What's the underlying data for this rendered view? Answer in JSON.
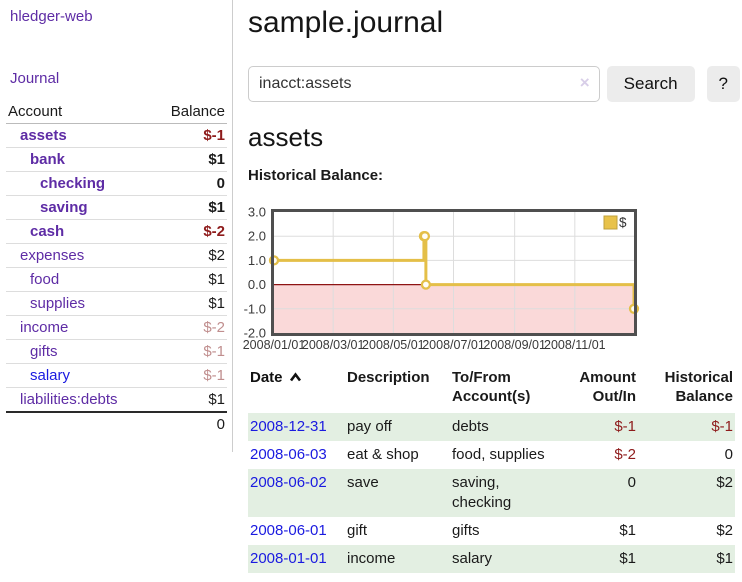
{
  "sidebar": {
    "brand": "hledger-web",
    "journal_link": "Journal",
    "accounts": {
      "col_account": "Account",
      "col_balance": "Balance",
      "rows": [
        {
          "name": "assets",
          "balance": "$-1"
        },
        {
          "name": "bank",
          "balance": "$1"
        },
        {
          "name": "checking",
          "balance": "0"
        },
        {
          "name": "saving",
          "balance": "$1"
        },
        {
          "name": "cash",
          "balance": "$-2"
        },
        {
          "name": "expenses",
          "balance": "$2"
        },
        {
          "name": "food",
          "balance": "$1"
        },
        {
          "name": "supplies",
          "balance": "$1"
        },
        {
          "name": "income",
          "balance": "$-2"
        },
        {
          "name": "gifts",
          "balance": "$-1"
        },
        {
          "name": "salary",
          "balance": "$-1"
        },
        {
          "name": "liabilities:debts",
          "balance": "$1"
        }
      ],
      "total": "0"
    }
  },
  "main": {
    "title": "sample.journal",
    "search": {
      "query": "inacct:assets",
      "clear": "×",
      "search_button": "Search",
      "help_button": "?"
    },
    "heading": "assets",
    "chart_title": "Historical Balance:"
  },
  "chart_data": {
    "type": "line",
    "style": "step-after",
    "title": "Historical Balance:",
    "legend": [
      {
        "label": "$",
        "color": "#e8c24a"
      }
    ],
    "legend_position": "top-right",
    "grid": true,
    "xlim_dates": [
      "2008-01-01",
      "2008-12-31"
    ],
    "ylim": [
      -2,
      3
    ],
    "y_ticks": [
      3.0,
      2.0,
      1.0,
      0.0,
      -1.0,
      -2.0
    ],
    "x_ticks": [
      "2008/01/01",
      "2008/03/01",
      "2008/05/01",
      "2008/07/01",
      "2008/09/01",
      "2008/11/01"
    ],
    "series": [
      {
        "name": "$",
        "color": "#e4bf48",
        "points": [
          {
            "date": "2008-01-01",
            "value": 1
          },
          {
            "date": "2008-06-01",
            "value": 2
          },
          {
            "date": "2008-06-02",
            "value": 2
          },
          {
            "date": "2008-06-03",
            "value": 0
          },
          {
            "date": "2008-12-31",
            "value": -1
          }
        ]
      }
    ],
    "negative_region_color": "#fad9d9",
    "zero_line_color": "#8e1414",
    "border_color": "#4f4f4f",
    "gridline_color": "#dddddd"
  },
  "register": {
    "headers": {
      "date": "Date",
      "description": "Description",
      "account": "To/From Account(s)",
      "amount": "Amount Out/In",
      "balance": "Historical Balance",
      "sort_icon": "chevron-up"
    },
    "rows": [
      {
        "date": "2008-12-31",
        "description": "pay off",
        "accounts": "debts",
        "amount": "$-1",
        "balance": "$-1"
      },
      {
        "date": "2008-06-03",
        "description": "eat & shop",
        "accounts": "food, supplies",
        "amount": "$-2",
        "balance": "0"
      },
      {
        "date": "2008-06-02",
        "description": "save",
        "accounts": "saving, checking",
        "amount": "0",
        "balance": "$2"
      },
      {
        "date": "2008-06-01",
        "description": "gift",
        "accounts": "gifts",
        "amount": "$1",
        "balance": "$2"
      },
      {
        "date": "2008-01-01",
        "description": "income",
        "accounts": "salary",
        "amount": "$1",
        "balance": "$1"
      }
    ]
  }
}
